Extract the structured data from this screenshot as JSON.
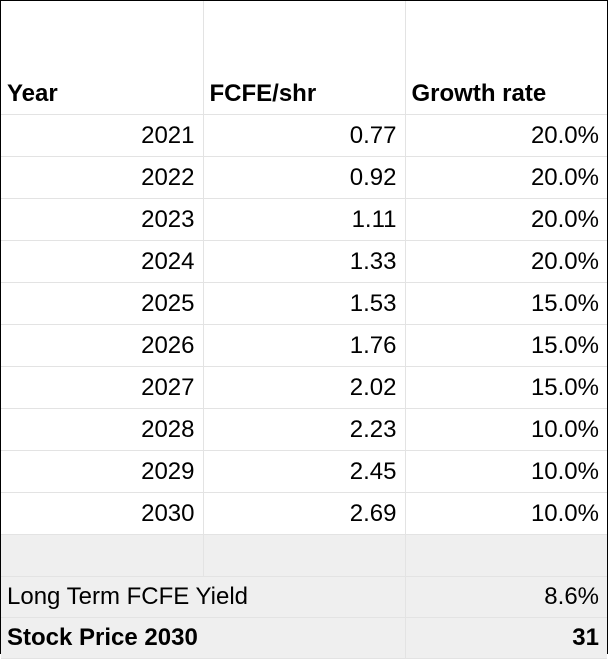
{
  "headers": {
    "year": "Year",
    "fcfe": "FCFE/shr",
    "growth": "Growth rate"
  },
  "rows": [
    {
      "year": "2021",
      "fcfe": "0.77",
      "growth": "20.0%"
    },
    {
      "year": "2022",
      "fcfe": "0.92",
      "growth": "20.0%"
    },
    {
      "year": "2023",
      "fcfe": "1.11",
      "growth": "20.0%"
    },
    {
      "year": "2024",
      "fcfe": "1.33",
      "growth": "20.0%"
    },
    {
      "year": "2025",
      "fcfe": "1.53",
      "growth": "15.0%"
    },
    {
      "year": "2026",
      "fcfe": "1.76",
      "growth": "15.0%"
    },
    {
      "year": "2027",
      "fcfe": "2.02",
      "growth": "15.0%"
    },
    {
      "year": "2028",
      "fcfe": "2.23",
      "growth": "10.0%"
    },
    {
      "year": "2029",
      "fcfe": "2.45",
      "growth": "10.0%"
    },
    {
      "year": "2030",
      "fcfe": "2.69",
      "growth": "10.0%"
    }
  ],
  "summary": {
    "yield_label": "Long Term FCFE Yield",
    "yield_value": "8.6%",
    "price_label": "Stock Price 2030",
    "price_value": "31"
  }
}
